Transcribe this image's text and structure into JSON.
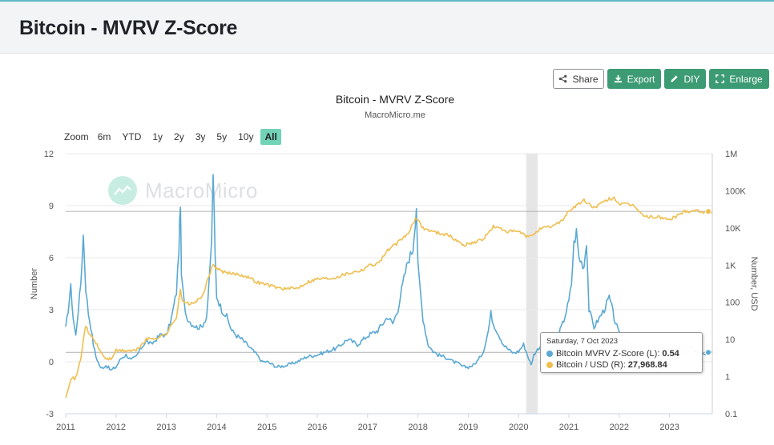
{
  "header": {
    "title": "Bitcoin - MVRV Z-Score"
  },
  "toolbar": {
    "share_label": "Share",
    "export_label": "Export",
    "diy_label": "DIY",
    "enlarge_label": "Enlarge"
  },
  "range_selector": {
    "label": "Zoom",
    "options": [
      "6m",
      "YTD",
      "1y",
      "2y",
      "3y",
      "5y",
      "10y",
      "All"
    ],
    "active": "All"
  },
  "watermark": {
    "text": "MacroMicro"
  },
  "tooltip": {
    "date": "Saturday, 7 Oct 2023",
    "series": [
      {
        "label": "Bitcoin MVRV Z-Score (L):",
        "value": "0.54",
        "color": "#5aa9d3"
      },
      {
        "label": "Bitcoin / USD (R):",
        "value": "27,968.84",
        "color": "#f0be4e"
      }
    ]
  },
  "chart_data": {
    "type": "line",
    "title": "Bitcoin - MVRV Z-Score",
    "subtitle": "MacroMicro.me",
    "ylabel_left": "Number",
    "ylabel_right": "Number, USD",
    "left_axis": {
      "min": -3,
      "max": 12,
      "ticks": [
        "-3",
        "0",
        "3",
        "6",
        "9",
        "12"
      ],
      "tick_values": [
        -3,
        0,
        3,
        6,
        9,
        12
      ]
    },
    "right_axis": {
      "scale": "log",
      "min": 0.1,
      "max": 1000000,
      "ticks": [
        "0.1",
        "1",
        "10",
        "100",
        "1K",
        "10K",
        "100K",
        "1M"
      ],
      "tick_values": [
        0.1,
        1,
        10,
        100,
        1000,
        10000,
        100000,
        1000000
      ]
    },
    "x_ticks": [
      "2011",
      "2012",
      "2013",
      "2014",
      "2015",
      "2016",
      "2017",
      "2018",
      "2019",
      "2020",
      "2021",
      "2022",
      "2023"
    ],
    "x_range": [
      2011.0,
      2023.85
    ],
    "shaded_band": [
      2020.15,
      2020.38
    ],
    "reference_lines": {
      "left": 0.54,
      "right": 27968.84
    },
    "series": [
      {
        "name": "Bitcoin MVRV Z-Score (L)",
        "axis": "left",
        "color": "#5aa9d3",
        "x": [
          2011.0,
          2011.05,
          2011.1,
          2011.15,
          2011.2,
          2011.25,
          2011.3,
          2011.35,
          2011.4,
          2011.45,
          2011.5,
          2011.55,
          2011.6,
          2011.7,
          2011.8,
          2011.9,
          2012.0,
          2012.1,
          2012.2,
          2012.3,
          2012.4,
          2012.5,
          2012.6,
          2012.7,
          2012.8,
          2012.9,
          2013.0,
          2013.1,
          2013.2,
          2013.25,
          2013.28,
          2013.3,
          2013.35,
          2013.4,
          2013.5,
          2013.6,
          2013.7,
          2013.8,
          2013.85,
          2013.9,
          2013.93,
          2013.97,
          2014.0,
          2014.1,
          2014.2,
          2014.3,
          2014.4,
          2014.5,
          2014.6,
          2014.7,
          2014.8,
          2014.9,
          2015.0,
          2015.2,
          2015.4,
          2015.6,
          2015.8,
          2016.0,
          2016.2,
          2016.4,
          2016.6,
          2016.8,
          2017.0,
          2017.2,
          2017.4,
          2017.5,
          2017.6,
          2017.7,
          2017.8,
          2017.9,
          2017.97,
          2018.0,
          2018.1,
          2018.2,
          2018.3,
          2018.4,
          2018.5,
          2018.6,
          2018.7,
          2018.8,
          2018.9,
          2019.0,
          2019.1,
          2019.2,
          2019.3,
          2019.4,
          2019.45,
          2019.5,
          2019.6,
          2019.7,
          2019.8,
          2019.9,
          2020.0,
          2020.1,
          2020.2,
          2020.25,
          2020.3,
          2020.4,
          2020.5,
          2020.6,
          2020.7,
          2020.8,
          2020.9,
          2021.0,
          2021.05,
          2021.1,
          2021.15,
          2021.2,
          2021.3,
          2021.35,
          2021.4,
          2021.5,
          2021.6,
          2021.7,
          2021.8,
          2021.85,
          2021.9,
          2022.0,
          2022.1,
          2022.2,
          2022.3,
          2022.4,
          2022.5,
          2022.6,
          2022.7,
          2022.8,
          2022.9,
          2023.0,
          2023.1,
          2023.2,
          2023.3,
          2023.4,
          2023.5,
          2023.6,
          2023.7,
          2023.77,
          2023.85
        ],
        "values": [
          1.9,
          3.0,
          4.3,
          2.5,
          1.5,
          3.0,
          4.5,
          7.3,
          4.2,
          2.8,
          2.0,
          1.0,
          0.3,
          -0.4,
          -0.2,
          -0.5,
          -0.3,
          0.2,
          0.4,
          0.1,
          0.3,
          0.8,
          1.2,
          1.0,
          1.3,
          1.6,
          1.5,
          2.5,
          4.0,
          6.5,
          9.3,
          5.0,
          3.5,
          2.6,
          2.2,
          2.0,
          2.0,
          2.6,
          4.5,
          7.0,
          11.0,
          6.0,
          3.8,
          3.0,
          2.6,
          1.8,
          1.5,
          1.3,
          1.0,
          0.7,
          0.4,
          0.0,
          0.0,
          -0.3,
          -0.2,
          0.0,
          0.3,
          0.4,
          0.6,
          0.8,
          1.3,
          1.0,
          1.5,
          1.8,
          2.6,
          2.2,
          3.0,
          4.5,
          5.8,
          6.5,
          9.0,
          5.5,
          2.5,
          1.0,
          0.6,
          0.4,
          0.3,
          0.2,
          0.0,
          -0.1,
          -0.3,
          -0.3,
          -0.2,
          0.1,
          0.6,
          1.8,
          2.8,
          2.2,
          1.6,
          1.0,
          0.7,
          0.5,
          0.6,
          1.0,
          0.2,
          -0.2,
          0.4,
          0.8,
          1.1,
          1.3,
          1.2,
          1.6,
          2.4,
          3.5,
          4.5,
          6.8,
          7.5,
          6.0,
          5.5,
          7.0,
          3.0,
          2.0,
          2.5,
          3.0,
          3.7,
          3.2,
          2.5,
          1.6,
          1.4,
          1.0,
          0.3,
          -0.1,
          -0.2,
          -0.1,
          -0.2,
          -0.3,
          -0.4,
          -0.1,
          0.4,
          0.5,
          0.7,
          0.8,
          0.7,
          0.6,
          0.5,
          0.54,
          0.6
        ]
      },
      {
        "name": "Bitcoin / USD (R)",
        "axis": "right",
        "color": "#f0be4e",
        "x": [
          2011.0,
          2011.05,
          2011.1,
          2011.2,
          2011.3,
          2011.35,
          2011.4,
          2011.45,
          2011.5,
          2011.6,
          2011.7,
          2011.8,
          2011.9,
          2012.0,
          2012.2,
          2012.4,
          2012.6,
          2012.8,
          2013.0,
          2013.2,
          2013.28,
          2013.32,
          2013.5,
          2013.7,
          2013.85,
          2013.93,
          2014.0,
          2014.2,
          2014.4,
          2014.6,
          2014.8,
          2015.0,
          2015.2,
          2015.4,
          2015.6,
          2015.8,
          2016.0,
          2016.3,
          2016.6,
          2016.9,
          2017.0,
          2017.2,
          2017.4,
          2017.6,
          2017.8,
          2017.97,
          2018.1,
          2018.3,
          2018.6,
          2018.9,
          2019.0,
          2019.3,
          2019.5,
          2019.8,
          2020.0,
          2020.2,
          2020.4,
          2020.7,
          2020.9,
          2021.0,
          2021.3,
          2021.5,
          2021.8,
          2021.9,
          2022.0,
          2022.3,
          2022.5,
          2022.8,
          2023.0,
          2023.3,
          2023.5,
          2023.77,
          2023.85
        ],
        "values": [
          0.3,
          0.5,
          0.9,
          0.9,
          3,
          10,
          25,
          14,
          13,
          8,
          4.5,
          3,
          3,
          5,
          5,
          5,
          10,
          11,
          14,
          40,
          230,
          100,
          90,
          130,
          500,
          1100,
          800,
          600,
          580,
          500,
          350,
          300,
          250,
          230,
          240,
          350,
          430,
          450,
          600,
          750,
          970,
          1100,
          2500,
          4000,
          7000,
          19000,
          10000,
          8000,
          6500,
          3500,
          3700,
          5000,
          11000,
          8000,
          8000,
          5500,
          9000,
          11500,
          18000,
          29000,
          55000,
          35000,
          60000,
          64000,
          45000,
          40000,
          20000,
          19500,
          16500,
          28000,
          30000,
          26500,
          28000
        ]
      }
    ]
  }
}
